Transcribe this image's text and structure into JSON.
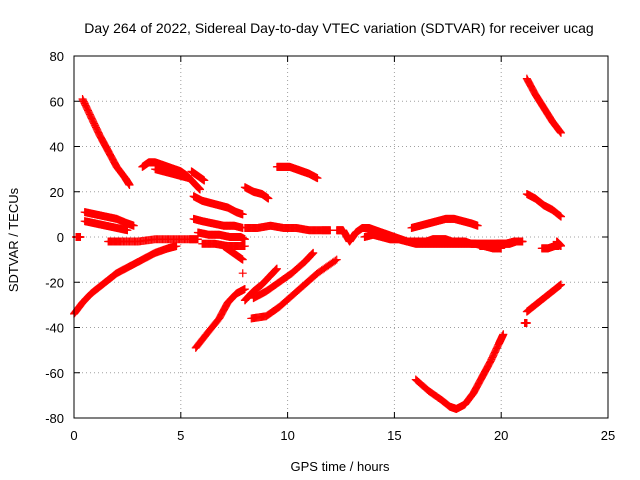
{
  "chart_data": {
    "type": "scatter",
    "title": "Day 264 of 2022, Sidereal Day-to-day VTEC variation (SDTVAR) for receiver ucag",
    "xlabel": "GPS time / hours",
    "ylabel": "SDTVAR / TECUs",
    "xlim": [
      0,
      25
    ],
    "ylim": [
      -80,
      80
    ],
    "xticks": [
      "0",
      "5",
      "10",
      "15",
      "20",
      "25"
    ],
    "yticks": [
      "-80",
      "-60",
      "-40",
      "-20",
      "0",
      "20",
      "40",
      "60",
      "80"
    ],
    "grid": true,
    "marker": "+",
    "marker_color": "#ff0000",
    "series": [
      {
        "x": [
          0.4,
          0.8,
          1.2,
          1.6,
          2.0,
          2.4,
          2.6
        ],
        "y": [
          61,
          53,
          45,
          38,
          31,
          26,
          23
        ]
      },
      {
        "x": [
          0.0,
          0.4,
          0.8,
          1.2,
          1.6,
          2.0,
          2.6,
          3.2,
          3.8,
          4.4,
          4.8
        ],
        "y": [
          -34,
          -29,
          -25,
          -22,
          -19,
          -16,
          -13,
          -10,
          -7,
          -5,
          -4
        ]
      },
      {
        "x": [
          0.5,
          1.0,
          1.5,
          2.0,
          2.5,
          2.8
        ],
        "y": [
          11,
          10,
          9,
          8,
          6,
          5
        ]
      },
      {
        "x": [
          0.5,
          1.0,
          1.5,
          2.0,
          2.5
        ],
        "y": [
          7,
          6,
          5,
          4,
          3
        ]
      },
      {
        "x": [
          0.1,
          0.2,
          0.3
        ],
        "y": [
          0,
          0,
          0
        ]
      },
      {
        "x": [
          1.6,
          2.2,
          3.0,
          3.8,
          4.6,
          5.4,
          5.8
        ],
        "y": [
          -2,
          -2,
          -2,
          -1,
          -1,
          -1,
          -1
        ]
      },
      {
        "x": [
          3.2,
          3.5,
          3.8,
          4.1,
          4.4,
          4.7,
          5.0,
          5.3,
          5.6,
          5.9
        ],
        "y": [
          31,
          33,
          33,
          32,
          31,
          30,
          29,
          27,
          24,
          21
        ]
      },
      {
        "x": [
          3.8,
          4.2,
          4.6,
          5.0,
          5.4
        ],
        "y": [
          30,
          29,
          28,
          27,
          26
        ]
      },
      {
        "x": [
          5.5,
          5.8,
          6.1
        ],
        "y": [
          29,
          27,
          25
        ]
      },
      {
        "x": [
          5.6,
          6.0,
          6.4,
          6.8,
          7.2,
          7.6,
          7.9
        ],
        "y": [
          18,
          16,
          15,
          14,
          13,
          11,
          10
        ]
      },
      {
        "x": [
          5.7,
          6.2,
          6.8,
          7.2,
          7.6,
          8.0
        ],
        "y": [
          -49,
          -43,
          -36,
          -29,
          -25,
          -23
        ]
      },
      {
        "x": [
          5.6,
          6.0,
          6.5,
          7.0,
          7.5,
          7.9
        ],
        "y": [
          8,
          7,
          6,
          5,
          5,
          4
        ]
      },
      {
        "x": [
          5.8,
          6.3,
          6.8,
          7.3,
          7.8,
          8.0
        ],
        "y": [
          2,
          1,
          1,
          0,
          0,
          -1
        ]
      },
      {
        "x": [
          6.0,
          6.6,
          7.2,
          7.8,
          8.0
        ],
        "y": [
          -3,
          -3,
          -4,
          -4,
          -4
        ]
      },
      {
        "x": [
          7.0,
          7.3,
          7.6,
          7.9
        ],
        "y": [
          -4,
          -6,
          -8,
          -10
        ]
      },
      {
        "x": [
          8.0,
          8.4,
          8.8,
          9.1
        ],
        "y": [
          22,
          20,
          19,
          17
        ]
      },
      {
        "x": [
          8.0,
          8.4,
          8.8,
          9.2,
          9.5
        ],
        "y": [
          -28,
          -24,
          -21,
          -17,
          -14
        ]
      },
      {
        "x": [
          8.0,
          8.6,
          9.2,
          9.8,
          10.4,
          11.0,
          11.6,
          12.0
        ],
        "y": [
          4,
          4,
          5,
          4,
          4,
          3,
          3,
          3
        ]
      },
      {
        "x": [
          8.3,
          9.0,
          9.6,
          10.2,
          10.8,
          11.4,
          12.3
        ],
        "y": [
          -36,
          -35,
          -31,
          -26,
          -21,
          -16,
          -10
        ]
      },
      {
        "x": [
          8.4,
          9.0,
          9.6,
          10.2,
          10.8,
          11.2
        ],
        "y": [
          -27,
          -24,
          -20,
          -16,
          -11,
          -7
        ]
      },
      {
        "x": [
          9.5,
          9.8,
          10.1,
          10.4,
          10.7,
          11.0,
          11.4
        ],
        "y": [
          31,
          31,
          31,
          30,
          29,
          28,
          26
        ]
      },
      {
        "x": [
          7.9
        ],
        "y": [
          -16
        ]
      },
      {
        "x": [
          12.3,
          12.6,
          12.9,
          13.2,
          13.5,
          13.8,
          14.1,
          14.4,
          14.7,
          15.0,
          15.3,
          15.6,
          15.9,
          16.2,
          16.5,
          16.8,
          17.1,
          17.4,
          17.7,
          18.0,
          18.3,
          18.6,
          18.9,
          19.2,
          19.5,
          19.8,
          20.1,
          20.4,
          20.7,
          21.0
        ],
        "y": [
          3,
          3,
          -2,
          2,
          4,
          4,
          3,
          2,
          1,
          0,
          -1,
          -2,
          -2,
          -2,
          -2,
          -1,
          -1,
          -1,
          -2,
          -2,
          -2,
          -3,
          -3,
          -3,
          -3,
          -3,
          -3,
          -3,
          -2,
          -2
        ]
      },
      {
        "x": [
          13.6,
          14.0,
          14.4,
          14.8,
          15.2,
          15.6,
          16.0,
          16.4,
          16.8,
          17.2,
          17.6,
          18.0,
          18.4,
          18.8,
          19.2,
          19.6,
          20.0
        ],
        "y": [
          0,
          1,
          0,
          -1,
          -1,
          -2,
          -3,
          -3,
          -3,
          -3,
          -3,
          -3,
          -3,
          -3,
          -4,
          -5,
          -5
        ]
      },
      {
        "x": [
          15.8,
          16.2,
          16.6,
          17.0,
          17.4,
          17.8,
          18.2,
          18.6,
          18.9
        ],
        "y": [
          4,
          5,
          6,
          7,
          8,
          8,
          7,
          6,
          5
        ]
      },
      {
        "x": [
          16.0,
          16.6,
          17.2,
          17.6,
          17.9,
          18.3,
          18.7,
          19.1,
          19.5,
          19.9,
          20.1
        ],
        "y": [
          -63,
          -68,
          -72,
          -75,
          -76,
          -74,
          -69,
          -62,
          -55,
          -47,
          -43
        ]
      },
      {
        "x": [
          19.0,
          19.4,
          19.8,
          20.2,
          20.6,
          21.0
        ],
        "y": [
          -4,
          -4,
          -3,
          -3,
          -2,
          -2
        ]
      },
      {
        "x": [
          21.1,
          21.2
        ],
        "y": [
          -38,
          -38
        ]
      },
      {
        "x": [
          21.2,
          21.6,
          22.0,
          22.4,
          22.8
        ],
        "y": [
          70,
          63,
          57,
          51,
          46
        ]
      },
      {
        "x": [
          21.2,
          21.6,
          22.0,
          22.4,
          22.8
        ],
        "y": [
          19,
          17,
          14,
          12,
          9
        ]
      },
      {
        "x": [
          21.2,
          21.6,
          22.0,
          22.4,
          22.8
        ],
        "y": [
          -33,
          -30,
          -27,
          -24,
          -21
        ]
      },
      {
        "x": [
          21.9,
          22.2,
          22.5,
          22.7
        ],
        "y": [
          -5,
          -5,
          -4,
          -4
        ]
      },
      {
        "x": [
          22.6,
          22.7,
          22.8
        ],
        "y": [
          -2,
          -3,
          -4
        ]
      }
    ]
  }
}
